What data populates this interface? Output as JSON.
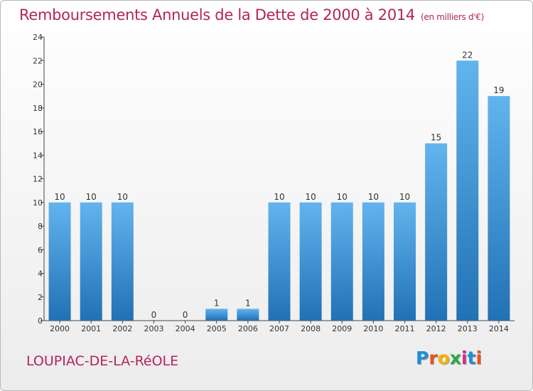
{
  "title": "Remboursements Annuels de la Dette de 2000 à 2014",
  "title_unit": "(en milliers d'€)",
  "commune": "LOUPIAC-DE-LA-RéOLE",
  "logo": {
    "letters": [
      "P",
      "r",
      "o",
      "x",
      "i",
      "t",
      "i"
    ],
    "colors": [
      "#1f8fd8",
      "#e8521f",
      "#f4b400",
      "#2aa84a",
      "#d42a8c",
      "#1f8fd8",
      "#e8521f"
    ]
  },
  "colors": {
    "bar_top": "#62b4ee",
    "bar_bottom": "#2171b5",
    "title": "#b2245e"
  },
  "chart_data": {
    "type": "bar",
    "title": "Remboursements Annuels de la Dette de 2000 à 2014",
    "xlabel": "",
    "ylabel": "",
    "categories": [
      "2000",
      "2001",
      "2002",
      "2003",
      "2004",
      "2005",
      "2006",
      "2007",
      "2008",
      "2009",
      "2010",
      "2011",
      "2012",
      "2013",
      "2014"
    ],
    "values": [
      10,
      10,
      10,
      0,
      0,
      1,
      1,
      10,
      10,
      10,
      10,
      10,
      15,
      22,
      19
    ],
    "data_labels": [
      "10",
      "10",
      "10",
      "0",
      "0",
      "1",
      "1",
      "10",
      "10",
      "10",
      "10",
      "10",
      "15",
      "22",
      "19"
    ],
    "ylim": [
      0,
      24
    ],
    "yticks": [
      0,
      2,
      4,
      6,
      8,
      10,
      12,
      14,
      16,
      18,
      20,
      22,
      24
    ],
    "grid": false,
    "legend": "none"
  }
}
